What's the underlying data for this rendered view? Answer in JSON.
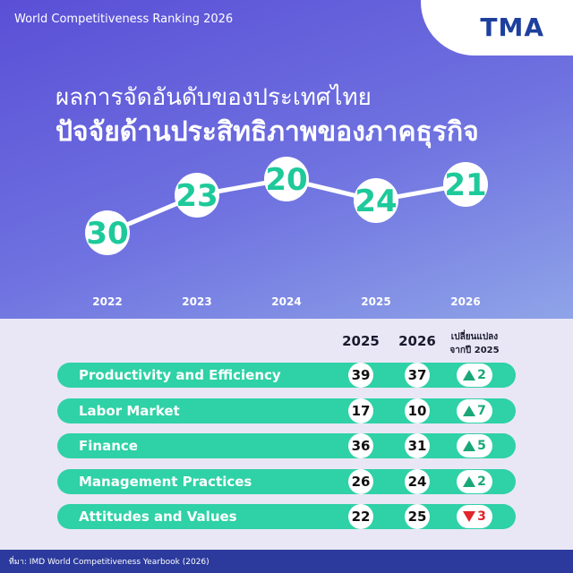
{
  "header": {
    "title": "World Competitiveness Ranking 2026",
    "logo": "TMA",
    "headline1": "ผลการจัดอันดับของประเทศไทย",
    "headline2": "ปัจจัยด้านประสิทธิภาพของภาคธุรกิจ"
  },
  "chart_data": {
    "type": "line",
    "categories": [
      "2022",
      "2023",
      "2024",
      "2025",
      "2026"
    ],
    "values": [
      30,
      23,
      20,
      24,
      21
    ],
    "ylim": [
      32,
      18
    ],
    "color": "#ffffff",
    "label_color": "#1ec99a"
  },
  "table": {
    "columns": [
      "2025",
      "2026",
      "เปลี่ยนแปลงจากปี 2025"
    ],
    "rows": [
      {
        "name": "Productivity and Efficiency",
        "y2025": 39,
        "y2026": 37,
        "change": 2,
        "direction": "up"
      },
      {
        "name": "Labor Market",
        "y2025": 17,
        "y2026": 10,
        "change": 7,
        "direction": "up"
      },
      {
        "name": "Finance",
        "y2025": 36,
        "y2026": 31,
        "change": 5,
        "direction": "up"
      },
      {
        "name": "Management Practices",
        "y2025": 26,
        "y2026": 24,
        "change": 2,
        "direction": "up"
      },
      {
        "name": "Attitudes and Values",
        "y2025": 22,
        "y2026": 25,
        "change": 3,
        "direction": "down"
      }
    ]
  },
  "footer": {
    "source": "ที่มา: IMD World Competitiveness Yearbook (2026)"
  }
}
